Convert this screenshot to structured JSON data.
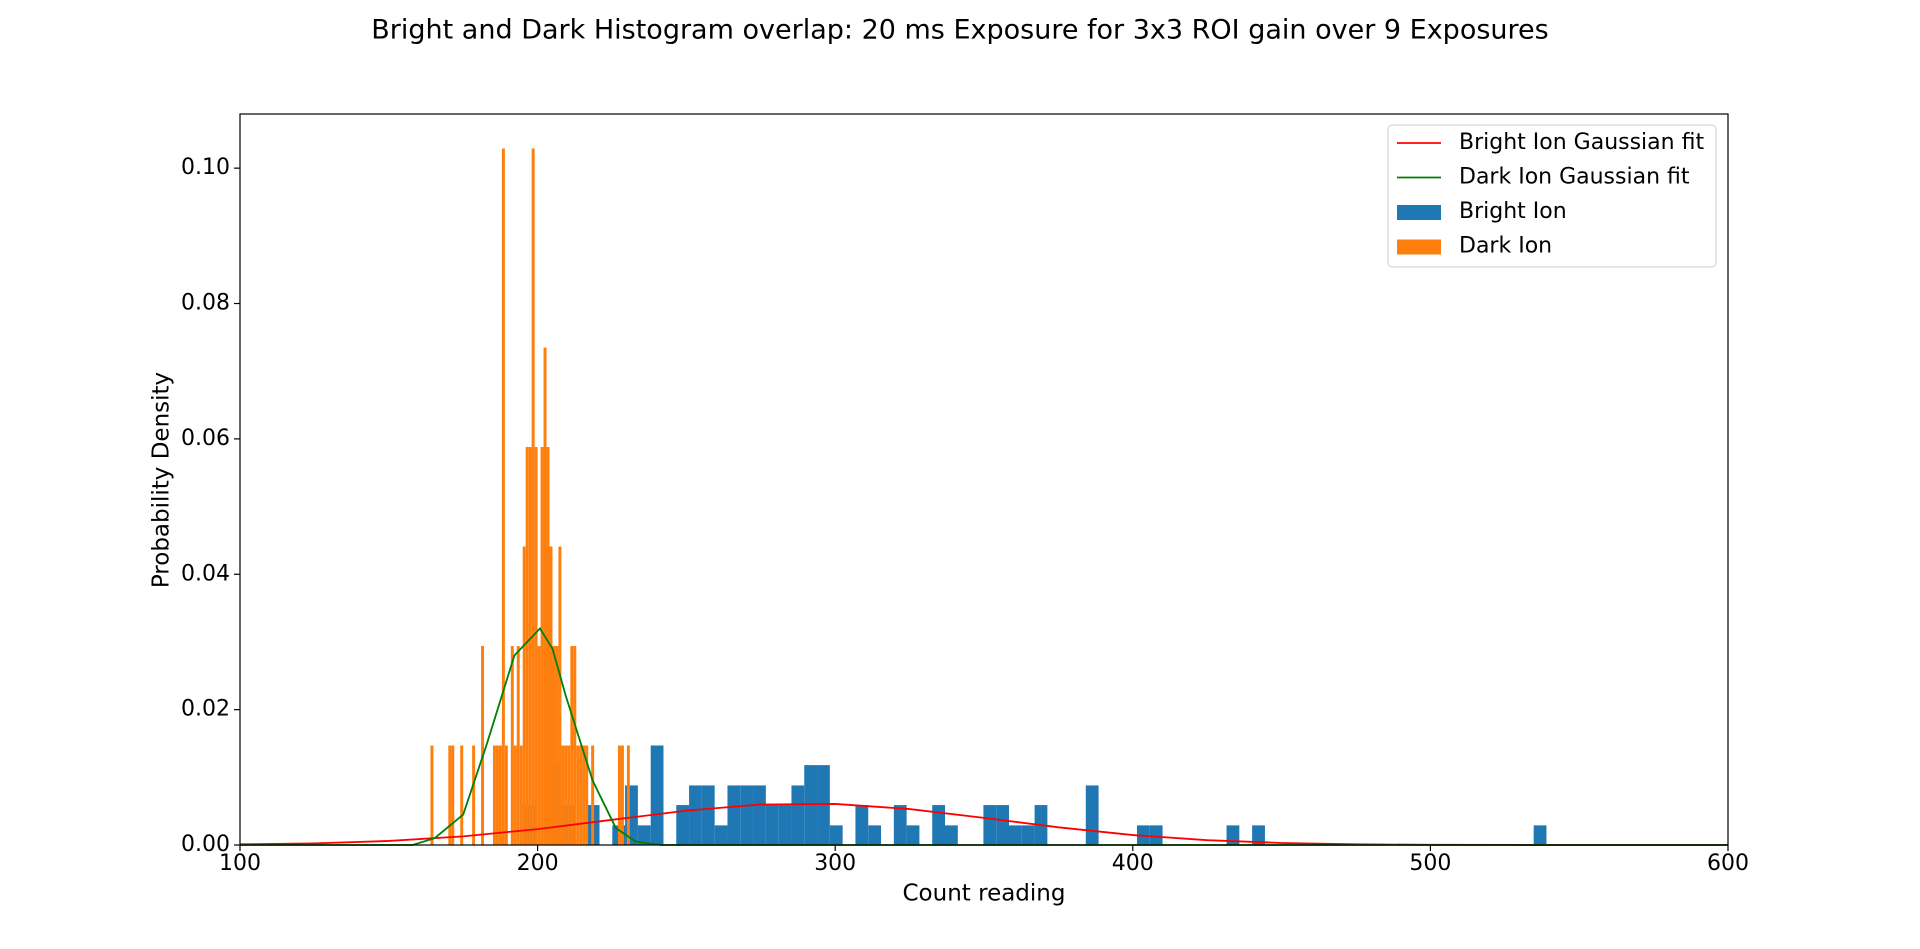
{
  "chart_data": {
    "type": "histogram",
    "title": "Bright and Dark Histogram overlap: 20 ms Exposure for 3x3 ROI gain over 9 Exposures",
    "x_label": "Count reading",
    "y_label": "Probability Density",
    "xlim": [
      100,
      600
    ],
    "ylim": [
      0,
      0.108
    ],
    "xticks": [
      100,
      200,
      300,
      400,
      500,
      600
    ],
    "yticks": [
      {
        "value": 0,
        "label": "0.00"
      },
      {
        "value": 0.02,
        "label": "0.02"
      },
      {
        "value": 0.04,
        "label": "0.04"
      },
      {
        "value": 0.06,
        "label": "0.06"
      },
      {
        "value": 0.08,
        "label": "0.08"
      },
      {
        "value": 0.1,
        "label": "0.10"
      }
    ],
    "legend": "upper right",
    "series": [
      {
        "name": "Bright Ion Gaussian fit",
        "type": "line",
        "color": "red",
        "x": [
          100,
          125,
          150,
          175,
          200,
          225,
          250,
          275,
          300,
          325,
          350,
          375,
          400,
          425,
          450,
          475,
          500,
          550,
          600
        ],
        "values": [
          0.0001,
          0.00024,
          0.0006,
          0.00128,
          0.00235,
          0.00372,
          0.00508,
          0.00598,
          0.00607,
          0.00531,
          0.00401,
          0.00261,
          0.00147,
          0.00071,
          0.0003,
          0.0001,
          3e-05,
          0,
          0
        ]
      },
      {
        "name": "Dark Ion Gaussian fit",
        "type": "line",
        "color": "green",
        "x": [
          100,
          158,
          165.4,
          175,
          183,
          192.2,
          200.8,
          205,
          209.5,
          218.5,
          226.3,
          233,
          241.6,
          600
        ],
        "values": [
          0,
          0,
          0.001,
          0.0045,
          0.015,
          0.028,
          0.032,
          0.029,
          0.022,
          0.0095,
          0.0025,
          0.0005,
          0,
          0
        ]
      },
      {
        "name": "Bright Ion",
        "type": "histogram",
        "color": "#1f77b4",
        "bins": [
          195,
          199.3,
          203.6,
          207.9,
          212.2,
          216.5,
          220.8,
          225.1,
          229.4,
          233.7,
          238,
          242.3,
          246.6,
          250.9,
          255.2,
          259.5,
          263.8,
          268.1,
          272.4,
          276.7,
          281,
          285.3,
          289.6,
          293.9,
          298.2,
          302.5,
          306.8,
          311.1,
          315.4,
          319.7,
          324,
          328.3,
          332.6,
          336.9,
          341.2,
          345.5,
          349.8,
          354.1,
          358.4,
          362.7,
          367,
          371.3,
          375.6,
          379.9,
          384.2,
          388.5,
          392.8,
          397.1,
          401.4,
          405.7,
          410,
          414.3,
          418.6,
          422.9,
          427.2,
          431.5,
          435.8,
          440.1,
          444.4,
          448.7,
          453,
          457.3,
          461.6,
          465.9,
          470.2,
          474.5,
          478.8,
          483.1,
          487.4,
          491.7,
          496,
          500.3,
          504.6,
          508.9,
          513.2,
          517.5,
          521.8,
          526.1,
          530.4,
          534.7,
          539
        ],
        "values": [
          0.0059,
          0,
          0.0118,
          0.0059,
          0,
          0.0059,
          0,
          0.0029,
          0.0088,
          0.0029,
          0.0147,
          0,
          0.0059,
          0.0088,
          0.0088,
          0.0029,
          0.0088,
          0.0088,
          0.0088,
          0.0059,
          0.0059,
          0.0088,
          0.0118,
          0.0118,
          0.0029,
          0,
          0.0059,
          0.0029,
          0,
          0.0059,
          0.0029,
          0,
          0.0059,
          0.0029,
          0,
          0,
          0.0059,
          0.0059,
          0.0029,
          0.0029,
          0.0059,
          0,
          0,
          0,
          0.0088,
          0,
          0,
          0,
          0.0029,
          0.0029,
          0,
          0,
          0,
          0,
          0,
          0.0029,
          0,
          0.0029,
          0,
          0,
          0,
          0,
          0,
          0,
          0,
          0,
          0,
          0,
          0,
          0,
          0,
          0,
          0,
          0,
          0,
          0,
          0,
          0,
          0,
          0.0029
        ]
      },
      {
        "name": "Dark Ion",
        "type": "histogram",
        "color": "#ff7f0e",
        "bins": [
          164,
          165,
          166,
          167,
          168,
          169,
          170,
          171,
          172,
          173,
          174,
          175,
          176,
          177,
          178,
          179,
          180,
          181,
          182,
          183,
          184,
          185,
          186,
          187,
          188,
          189,
          190,
          191,
          192,
          193,
          194,
          195,
          196,
          197,
          198,
          199,
          200,
          201,
          202,
          203,
          204,
          205,
          206,
          207,
          208,
          209,
          210,
          211,
          212,
          213,
          214,
          215,
          216,
          217,
          218,
          219,
          220,
          221,
          222,
          223,
          224,
          225,
          226,
          227,
          228,
          229,
          230,
          231,
          232,
          233
        ],
        "values": [
          0.0147,
          0,
          0,
          0,
          0,
          0,
          0.0147,
          0.0147,
          0,
          0,
          0.0147,
          0,
          0,
          0,
          0.0147,
          0,
          0,
          0.0294,
          0,
          0,
          0,
          0.0147,
          0.0147,
          0.0147,
          0.1029,
          0.0147,
          0,
          0.0294,
          0.0147,
          0.0294,
          0.0147,
          0.0441,
          0.0588,
          0.0588,
          0.1029,
          0.0588,
          0.0294,
          0.0588,
          0.0735,
          0.0588,
          0.0441,
          0.0294,
          0.0294,
          0.0441,
          0.0147,
          0.0147,
          0.0147,
          0.0294,
          0.0294,
          0.0147,
          0.0147,
          0.0147,
          0.0147,
          0,
          0.0147,
          0,
          0,
          0,
          0,
          0,
          0,
          0,
          0,
          0.0147,
          0.0147,
          0,
          0.0147,
          0,
          0
        ]
      }
    ]
  }
}
